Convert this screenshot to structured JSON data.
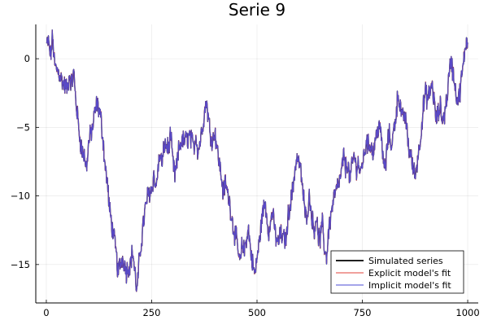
{
  "chart_data": {
    "type": "line",
    "title": "Serie 9",
    "xlabel": "",
    "ylabel": "",
    "xlim": [
      -25,
      1025
    ],
    "ylim": [
      -17.8,
      2.5
    ],
    "x_ticks": [
      0,
      250,
      500,
      750,
      1000
    ],
    "x_tick_labels": [
      "0",
      "250",
      "500",
      "750",
      "1000"
    ],
    "y_ticks": [
      0,
      -5,
      -10,
      -15
    ],
    "y_tick_labels": [
      "0",
      "−5",
      "−10",
      "−15"
    ],
    "grid": true,
    "legend_position": "bottom-right",
    "n_points": 1000,
    "series": [
      {
        "name": "Simulated series",
        "color": "#000000"
      },
      {
        "name": "Explicit model's fit",
        "color": "#e0413a"
      },
      {
        "name": "Implicit model's fit",
        "color": "#4b4bd6"
      }
    ],
    "path_anchors": [
      [
        0,
        1.0
      ],
      [
        5,
        1.2
      ],
      [
        10,
        0.2
      ],
      [
        15,
        1.6
      ],
      [
        20,
        -0.6
      ],
      [
        30,
        -1.0
      ],
      [
        40,
        -1.8
      ],
      [
        50,
        -2.2
      ],
      [
        55,
        -1.2
      ],
      [
        60,
        -1.8
      ],
      [
        65,
        -1.0
      ],
      [
        70,
        -3.0
      ],
      [
        75,
        -4.5
      ],
      [
        80,
        -5.8
      ],
      [
        85,
        -6.8
      ],
      [
        90,
        -7.0
      ],
      [
        95,
        -8.0
      ],
      [
        100,
        -6.3
      ],
      [
        105,
        -5.5
      ],
      [
        110,
        -5.0
      ],
      [
        115,
        -4.0
      ],
      [
        120,
        -3.3
      ],
      [
        125,
        -3.7
      ],
      [
        130,
        -4.5
      ],
      [
        135,
        -6.0
      ],
      [
        140,
        -8.0
      ],
      [
        145,
        -9.0
      ],
      [
        150,
        -11.0
      ],
      [
        155,
        -12.0
      ],
      [
        160,
        -13.0
      ],
      [
        165,
        -14.0
      ],
      [
        170,
        -15.5
      ],
      [
        175,
        -15.0
      ],
      [
        180,
        -14.5
      ],
      [
        185,
        -14.8
      ],
      [
        190,
        -15.5
      ],
      [
        200,
        -14.8
      ],
      [
        205,
        -14.0
      ],
      [
        210,
        -15.5
      ],
      [
        215,
        -17.0
      ],
      [
        220,
        -15.0
      ],
      [
        230,
        -12.0
      ],
      [
        240,
        -10.0
      ],
      [
        250,
        -9.5
      ],
      [
        255,
        -8.5
      ],
      [
        260,
        -9.5
      ],
      [
        265,
        -8.0
      ],
      [
        270,
        -7.0
      ],
      [
        275,
        -7.8
      ],
      [
        280,
        -6.2
      ],
      [
        290,
        -6.5
      ],
      [
        295,
        -5.5
      ],
      [
        300,
        -7.5
      ],
      [
        305,
        -8.5
      ],
      [
        310,
        -7.8
      ],
      [
        315,
        -6.5
      ],
      [
        320,
        -6.0
      ],
      [
        330,
        -6.0
      ],
      [
        340,
        -5.6
      ],
      [
        350,
        -6.5
      ],
      [
        355,
        -5.5
      ],
      [
        360,
        -6.8
      ],
      [
        365,
        -6.0
      ],
      [
        370,
        -5.0
      ],
      [
        375,
        -4.0
      ],
      [
        380,
        -3.0
      ],
      [
        385,
        -4.5
      ],
      [
        390,
        -5.5
      ],
      [
        395,
        -6.0
      ],
      [
        400,
        -5.2
      ],
      [
        405,
        -6.5
      ],
      [
        410,
        -7.5
      ],
      [
        415,
        -8.5
      ],
      [
        420,
        -9.8
      ],
      [
        425,
        -9.0
      ],
      [
        430,
        -9.8
      ],
      [
        435,
        -10.5
      ],
      [
        440,
        -11.5
      ],
      [
        445,
        -12.5
      ],
      [
        450,
        -13.0
      ],
      [
        455,
        -14.0
      ],
      [
        460,
        -15.0
      ],
      [
        465,
        -13.5
      ],
      [
        470,
        -14.0
      ],
      [
        475,
        -13.0
      ],
      [
        480,
        -12.5
      ],
      [
        485,
        -14.0
      ],
      [
        490,
        -15.0
      ],
      [
        495,
        -15.8
      ],
      [
        500,
        -14.5
      ],
      [
        505,
        -13.5
      ],
      [
        510,
        -12.0
      ],
      [
        515,
        -11.0
      ],
      [
        520,
        -10.5
      ],
      [
        525,
        -12.0
      ],
      [
        530,
        -12.8
      ],
      [
        535,
        -11.0
      ],
      [
        540,
        -12.0
      ],
      [
        545,
        -13.0
      ],
      [
        550,
        -13.5
      ],
      [
        555,
        -12.8
      ],
      [
        560,
        -13.0
      ],
      [
        565,
        -13.2
      ],
      [
        570,
        -13.0
      ],
      [
        575,
        -11.0
      ],
      [
        580,
        -10.5
      ],
      [
        585,
        -9.5
      ],
      [
        590,
        -8.0
      ],
      [
        595,
        -7.2
      ],
      [
        600,
        -7.6
      ],
      [
        605,
        -8.5
      ],
      [
        610,
        -10.0
      ],
      [
        615,
        -11.5
      ],
      [
        620,
        -11.0
      ],
      [
        625,
        -10.0
      ],
      [
        630,
        -11.5
      ],
      [
        635,
        -12.5
      ],
      [
        640,
        -11.5
      ],
      [
        645,
        -12.8
      ],
      [
        650,
        -13.2
      ],
      [
        655,
        -12.0
      ],
      [
        660,
        -13.8
      ],
      [
        665,
        -14.5
      ],
      [
        670,
        -12.5
      ],
      [
        675,
        -11.5
      ],
      [
        680,
        -10.5
      ],
      [
        685,
        -9.8
      ],
      [
        690,
        -9.5
      ],
      [
        695,
        -9.0
      ],
      [
        700,
        -8.5
      ],
      [
        705,
        -7.0
      ],
      [
        710,
        -8.0
      ],
      [
        715,
        -7.5
      ],
      [
        720,
        -8.8
      ],
      [
        725,
        -8.0
      ],
      [
        730,
        -7.0
      ],
      [
        735,
        -8.0
      ],
      [
        740,
        -7.5
      ],
      [
        745,
        -8.5
      ],
      [
        750,
        -7.5
      ],
      [
        755,
        -7.0
      ],
      [
        760,
        -5.8
      ],
      [
        765,
        -6.5
      ],
      [
        770,
        -6.0
      ],
      [
        775,
        -7.0
      ],
      [
        780,
        -6.0
      ],
      [
        785,
        -5.5
      ],
      [
        790,
        -4.5
      ],
      [
        795,
        -6.0
      ],
      [
        800,
        -7.5
      ],
      [
        805,
        -8.0
      ],
      [
        810,
        -6.0
      ],
      [
        815,
        -5.5
      ],
      [
        820,
        -6.5
      ],
      [
        825,
        -5.0
      ],
      [
        830,
        -4.0
      ],
      [
        835,
        -2.5
      ],
      [
        840,
        -3.5
      ],
      [
        845,
        -4.5
      ],
      [
        850,
        -4.0
      ],
      [
        855,
        -5.0
      ],
      [
        860,
        -6.5
      ],
      [
        865,
        -7.0
      ],
      [
        870,
        -8.0
      ],
      [
        875,
        -8.5
      ],
      [
        880,
        -7.5
      ],
      [
        885,
        -6.5
      ],
      [
        890,
        -5.0
      ],
      [
        895,
        -3.5
      ],
      [
        900,
        -2.5
      ],
      [
        905,
        -3.0
      ],
      [
        910,
        -2.5
      ],
      [
        915,
        -1.8
      ],
      [
        920,
        -3.0
      ],
      [
        925,
        -4.5
      ],
      [
        930,
        -4.0
      ],
      [
        935,
        -3.5
      ],
      [
        940,
        -4.5
      ],
      [
        945,
        -4.0
      ],
      [
        950,
        -3.0
      ],
      [
        955,
        -1.5
      ],
      [
        960,
        0.0
      ],
      [
        965,
        -1.0
      ],
      [
        970,
        -2.0
      ],
      [
        975,
        -3.0
      ],
      [
        980,
        -2.8
      ],
      [
        985,
        -1.5
      ],
      [
        990,
        -0.5
      ],
      [
        995,
        1.2
      ],
      [
        1000,
        1.3
      ]
    ]
  }
}
